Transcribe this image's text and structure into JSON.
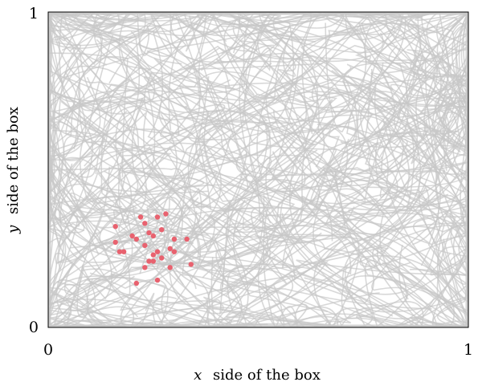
{
  "chart_data": {
    "type": "scatter",
    "xlabel_var": "x",
    "xlabel_text": "side of the box",
    "ylabel_var": "y",
    "ylabel_text": "side of the box",
    "xlim": [
      0,
      1
    ],
    "ylim": [
      0,
      1
    ],
    "xticks": [
      "0",
      "1"
    ],
    "yticks": [
      "0",
      "1"
    ],
    "grid": false,
    "trajectory_color": "#c8c8c8",
    "point_color": "#e8626f",
    "series": [
      {
        "values": [
          {
            "x": 0.22,
            "y": 0.35
          },
          {
            "x": 0.26,
            "y": 0.35
          },
          {
            "x": 0.28,
            "y": 0.36
          },
          {
            "x": 0.16,
            "y": 0.32
          },
          {
            "x": 0.23,
            "y": 0.33
          },
          {
            "x": 0.27,
            "y": 0.31
          },
          {
            "x": 0.3,
            "y": 0.28
          },
          {
            "x": 0.33,
            "y": 0.28
          },
          {
            "x": 0.2,
            "y": 0.29
          },
          {
            "x": 0.21,
            "y": 0.28
          },
          {
            "x": 0.24,
            "y": 0.3
          },
          {
            "x": 0.25,
            "y": 0.29
          },
          {
            "x": 0.16,
            "y": 0.27
          },
          {
            "x": 0.23,
            "y": 0.26
          },
          {
            "x": 0.29,
            "y": 0.25
          },
          {
            "x": 0.3,
            "y": 0.24
          },
          {
            "x": 0.18,
            "y": 0.24
          },
          {
            "x": 0.17,
            "y": 0.24
          },
          {
            "x": 0.25,
            "y": 0.23
          },
          {
            "x": 0.26,
            "y": 0.24
          },
          {
            "x": 0.27,
            "y": 0.22
          },
          {
            "x": 0.29,
            "y": 0.19
          },
          {
            "x": 0.24,
            "y": 0.21
          },
          {
            "x": 0.34,
            "y": 0.2
          },
          {
            "x": 0.23,
            "y": 0.19
          },
          {
            "x": 0.25,
            "y": 0.21
          },
          {
            "x": 0.21,
            "y": 0.14
          },
          {
            "x": 0.26,
            "y": 0.15
          }
        ]
      }
    ]
  }
}
